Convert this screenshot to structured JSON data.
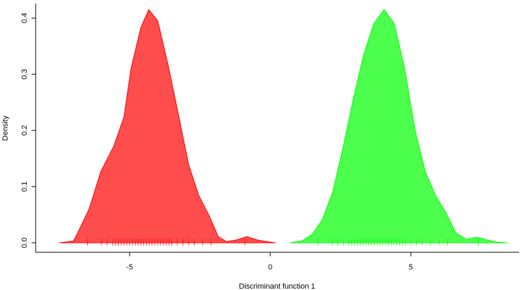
{
  "chart_data": {
    "type": "density",
    "x_label": "Discriminant function 1",
    "y_label": "Density",
    "xlim": [
      -8.34,
      8.85
    ],
    "ylim": [
      -0.017,
      0.426
    ],
    "xticks": [
      -5,
      0,
      5
    ],
    "yticks": [
      {
        "value": 0,
        "label": "0.0"
      },
      0.1,
      0.2,
      0.3,
      0.4
    ],
    "series": [
      {
        "color": "#ff0000",
        "fill": "rgba(255,0,0,0.7)",
        "x": [
          -7.5,
          -7.0,
          -6.85,
          -6.44,
          -6.02,
          -5.56,
          -5.2,
          -4.95,
          -4.6,
          -4.32,
          -4.0,
          -3.63,
          -3.27,
          -2.9,
          -2.54,
          -2.17,
          -1.85,
          -1.56,
          -1.2,
          -0.83,
          -0.46,
          0.02,
          0.2
        ],
        "values": [
          0,
          0.003,
          0.017,
          0.06,
          0.127,
          0.172,
          0.224,
          0.31,
          0.383,
          0.415,
          0.395,
          0.316,
          0.23,
          0.139,
          0.084,
          0.048,
          0.011,
          0.002,
          0.005,
          0.011,
          0.005,
          0.001,
          0
        ],
        "rug": [
          -6.5,
          -6.0,
          -5.8,
          -5.6,
          -5.5,
          -5.4,
          -5.3,
          -5.2,
          -5.1,
          -5.0,
          -4.9,
          -4.8,
          -4.7,
          -4.6,
          -4.5,
          -4.4,
          -4.3,
          -4.2,
          -4.1,
          -4.0,
          -3.9,
          -3.8,
          -3.7,
          -3.6,
          -3.5,
          -3.3,
          -3.1,
          -2.9,
          -2.7,
          -2.4,
          -2.1,
          -0.9
        ]
      },
      {
        "color": "#00ff00",
        "fill": "rgba(0,255,0,0.7)",
        "x": [
          0.7,
          1.12,
          1.49,
          1.85,
          2.22,
          2.59,
          2.95,
          3.32,
          3.68,
          4.05,
          4.41,
          4.78,
          5.15,
          5.51,
          5.88,
          6.24,
          6.61,
          6.98,
          7.34,
          7.71,
          8.07,
          8.44
        ],
        "values": [
          0,
          0.003,
          0.015,
          0.041,
          0.09,
          0.17,
          0.255,
          0.334,
          0.39,
          0.415,
          0.39,
          0.31,
          0.2,
          0.127,
          0.084,
          0.054,
          0.017,
          0.006,
          0.01,
          0.005,
          0.001,
          0
        ],
        "rug": [
          1.7,
          2.2,
          2.4,
          2.6,
          2.8,
          2.9,
          3.0,
          3.1,
          3.2,
          3.3,
          3.4,
          3.5,
          3.6,
          3.7,
          3.8,
          3.9,
          4.0,
          4.1,
          4.2,
          4.3,
          4.4,
          4.5,
          4.6,
          4.7,
          4.8,
          5.0,
          5.2,
          5.4,
          5.7,
          6.0,
          6.3,
          7.4
        ]
      }
    ]
  }
}
